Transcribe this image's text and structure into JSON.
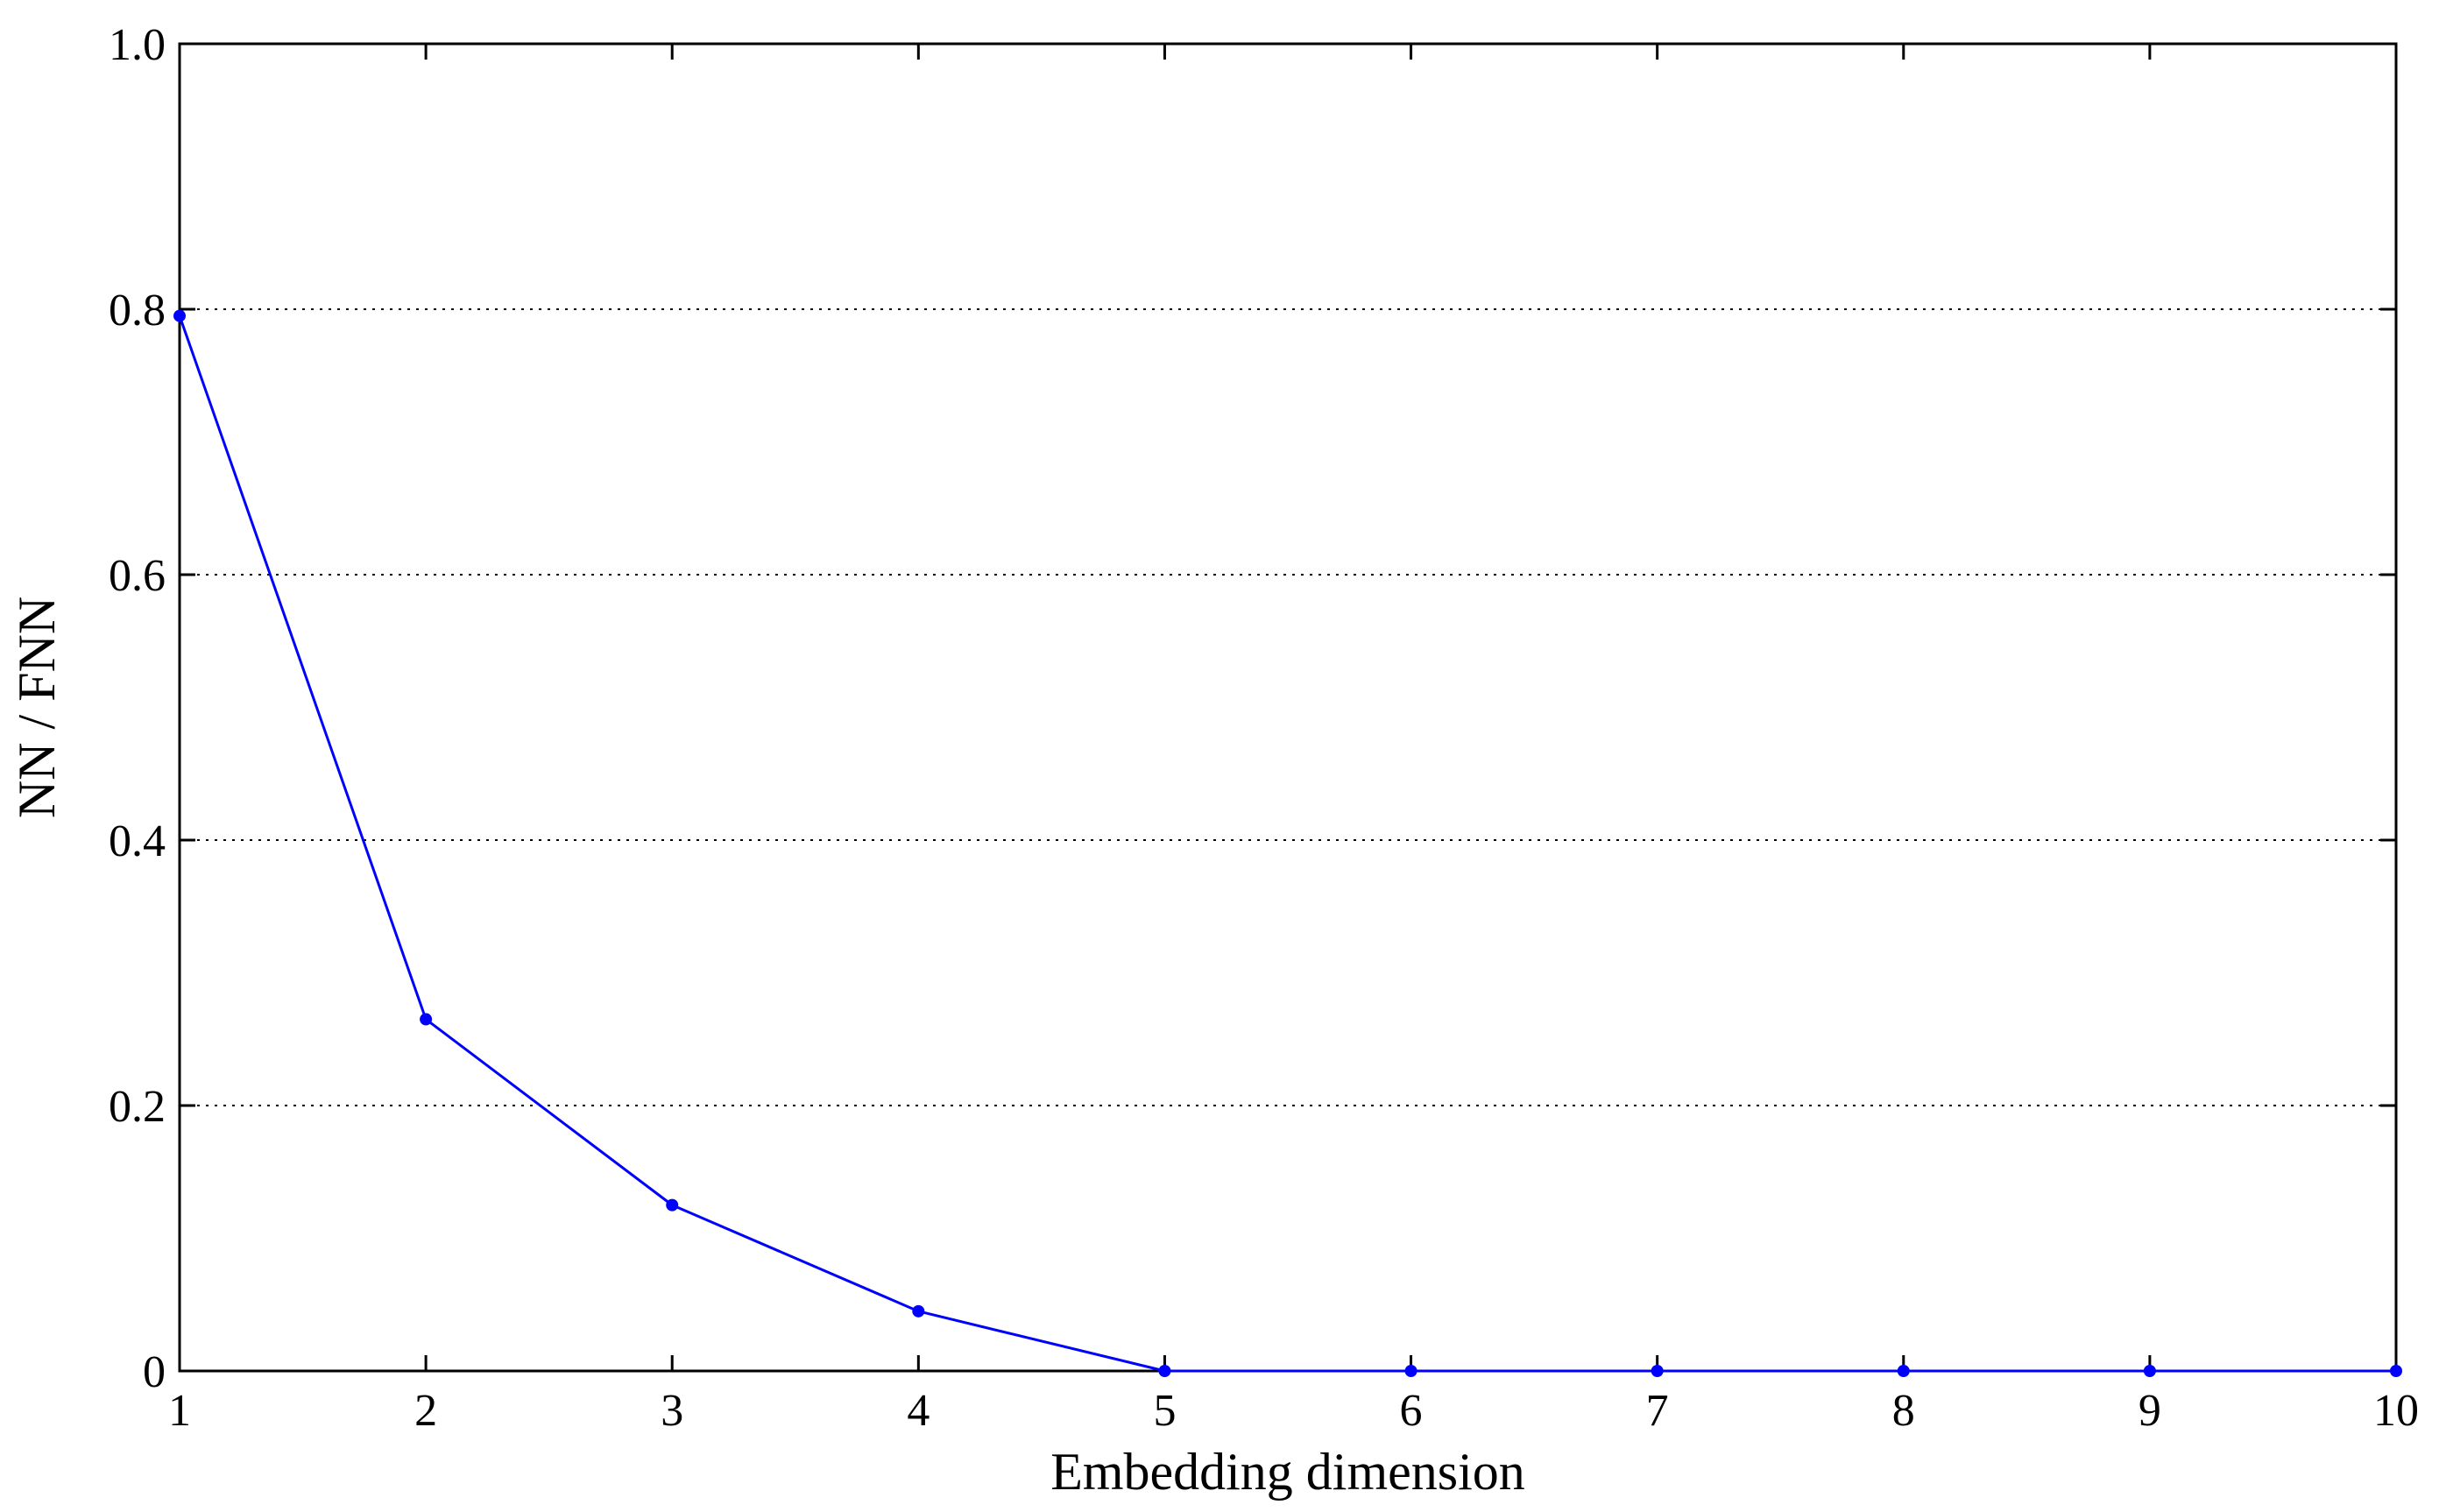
{
  "chart_data": {
    "type": "line",
    "title": "",
    "xlabel": "Embedding dimension",
    "ylabel": "NN / FNN",
    "x": [
      1,
      2,
      3,
      4,
      5,
      6,
      7,
      8,
      9,
      10
    ],
    "series": [
      {
        "values": [
          0.795,
          0.265,
          0.125,
          0.045,
          0.0,
          0.0,
          0.0,
          0.0,
          0.0,
          0.0
        ],
        "color": "#0000ff",
        "marker": "dot"
      }
    ],
    "xlim": [
      1,
      10
    ],
    "ylim": [
      0,
      1.0
    ],
    "xticks": [
      1,
      2,
      3,
      4,
      5,
      6,
      7,
      8,
      9,
      10
    ],
    "xtick_labels": [
      "1",
      "2",
      "3",
      "4",
      "5",
      "6",
      "7",
      "8",
      "9",
      "10"
    ],
    "yticks": [
      0,
      0.2,
      0.4,
      0.6,
      0.8,
      1.0
    ],
    "ytick_labels": [
      "0",
      "0.2",
      "0.4",
      "0.6",
      "0.8",
      "1.0"
    ],
    "grid": "horizontal dotted",
    "legend": "none"
  }
}
